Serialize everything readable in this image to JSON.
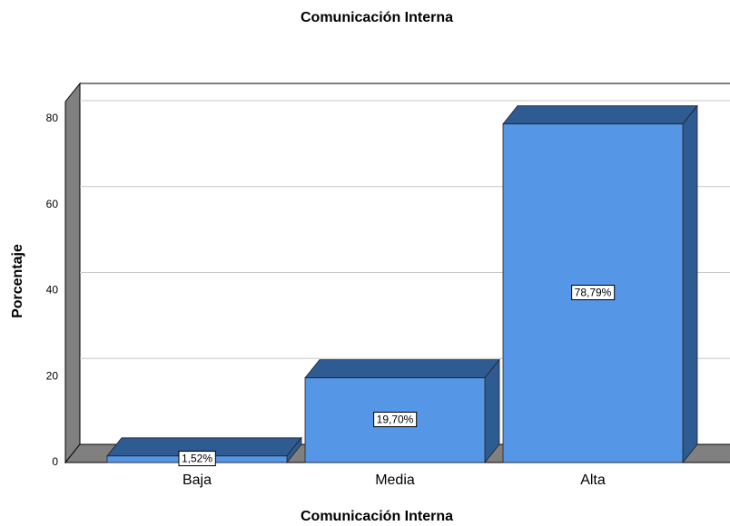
{
  "chart_data": {
    "type": "bar3d",
    "title": "Comunicación Interna",
    "x_label": "Comunicación Interna",
    "y_label": "Porcentaje",
    "categories": [
      "Baja",
      "Media",
      "Alta"
    ],
    "values": [
      1.52,
      19.7,
      78.79
    ],
    "value_labels": [
      "1,52%",
      "19,70%",
      "78,79%"
    ],
    "color": "#5596e6",
    "side_color": "#2f5b93",
    "ylim": [
      0,
      84
    ],
    "yticks": [
      0,
      20,
      40,
      60,
      80
    ],
    "grid": true
  }
}
